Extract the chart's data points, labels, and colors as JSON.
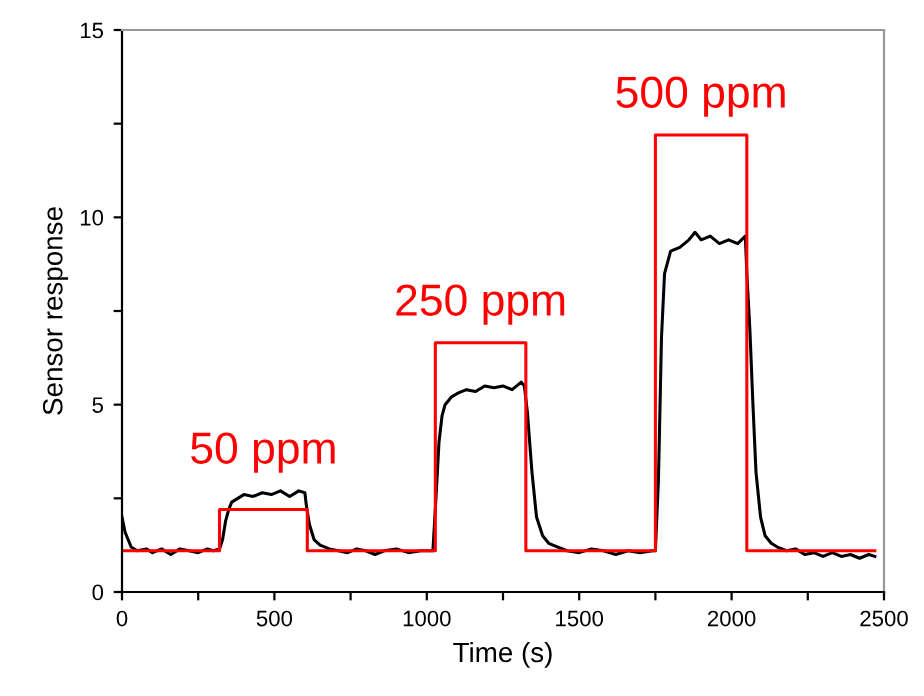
{
  "chart_data": {
    "type": "line",
    "xlabel": "Time (s)",
    "ylabel": "Sensor response",
    "xlim": [
      0,
      2500
    ],
    "ylim": [
      0,
      15
    ],
    "xticks": [
      0,
      {
        "value": 250,
        "label": null
      },
      500,
      {
        "value": 750,
        "label": null
      },
      1000,
      {
        "value": 1250,
        "label": null
      },
      1500,
      {
        "value": 1750,
        "label": null
      },
      2000,
      {
        "value": 2250,
        "label": null
      },
      2500
    ],
    "yticks": [
      0,
      {
        "value": 2.5,
        "label": null
      },
      5,
      {
        "value": 7.5,
        "label": null
      },
      10,
      {
        "value": 12.5,
        "label": null
      },
      15
    ],
    "grid": false,
    "legend": false,
    "series": [
      {
        "color": "#000000",
        "x": [
          0,
          10,
          20,
          30,
          50,
          80,
          100,
          130,
          160,
          190,
          220,
          250,
          280,
          300,
          320,
          330,
          340,
          350,
          360,
          380,
          400,
          430,
          460,
          490,
          520,
          550,
          580,
          600,
          605,
          615,
          630,
          650,
          680,
          710,
          740,
          770,
          800,
          830,
          860,
          900,
          940,
          980,
          1020,
          1030,
          1040,
          1050,
          1060,
          1080,
          1100,
          1130,
          1160,
          1190,
          1220,
          1250,
          1280,
          1310,
          1320,
          1330,
          1345,
          1360,
          1380,
          1400,
          1430,
          1460,
          1500,
          1540,
          1580,
          1620,
          1660,
          1700,
          1740,
          1750,
          1760,
          1770,
          1780,
          1800,
          1830,
          1860,
          1880,
          1900,
          1930,
          1960,
          1990,
          2020,
          2045,
          2050,
          2060,
          2070,
          2080,
          2095,
          2110,
          2130,
          2150,
          2180,
          2210,
          2240,
          2270,
          2300,
          2330,
          2360,
          2390,
          2420,
          2450,
          2470
        ],
        "values": [
          2.0,
          1.6,
          1.4,
          1.2,
          1.1,
          1.15,
          1.05,
          1.15,
          1.0,
          1.15,
          1.1,
          1.05,
          1.15,
          1.1,
          1.15,
          1.4,
          1.9,
          2.2,
          2.4,
          2.5,
          2.6,
          2.55,
          2.65,
          2.6,
          2.7,
          2.55,
          2.7,
          2.65,
          2.3,
          1.8,
          1.4,
          1.25,
          1.15,
          1.1,
          1.05,
          1.15,
          1.1,
          1.0,
          1.1,
          1.15,
          1.05,
          1.1,
          1.1,
          2.5,
          4.0,
          4.7,
          5.0,
          5.2,
          5.3,
          5.4,
          5.35,
          5.5,
          5.45,
          5.5,
          5.4,
          5.6,
          5.5,
          4.8,
          3.2,
          2.0,
          1.5,
          1.3,
          1.2,
          1.1,
          1.05,
          1.15,
          1.1,
          1.0,
          1.1,
          1.05,
          1.1,
          1.1,
          3.0,
          6.8,
          8.5,
          9.1,
          9.2,
          9.4,
          9.6,
          9.4,
          9.5,
          9.3,
          9.4,
          9.3,
          9.5,
          8.5,
          7.0,
          5.0,
          3.2,
          2.0,
          1.5,
          1.3,
          1.2,
          1.1,
          1.15,
          1.0,
          1.05,
          0.95,
          1.05,
          0.95,
          1.0,
          0.9,
          1.0,
          0.95
        ]
      },
      {
        "color": "#ff0000",
        "x": [
          0,
          320,
          320,
          608,
          608,
          1028,
          1028,
          1325,
          1325,
          1750,
          1750,
          2050,
          2050,
          2470
        ],
        "values": [
          1.1,
          1.1,
          2.2,
          2.2,
          1.1,
          1.1,
          6.65,
          6.65,
          1.1,
          1.1,
          12.2,
          12.2,
          1.1,
          1.1
        ]
      }
    ],
    "annotations": [
      "50 ppm",
      "250 ppm",
      "500 ppm"
    ]
  }
}
